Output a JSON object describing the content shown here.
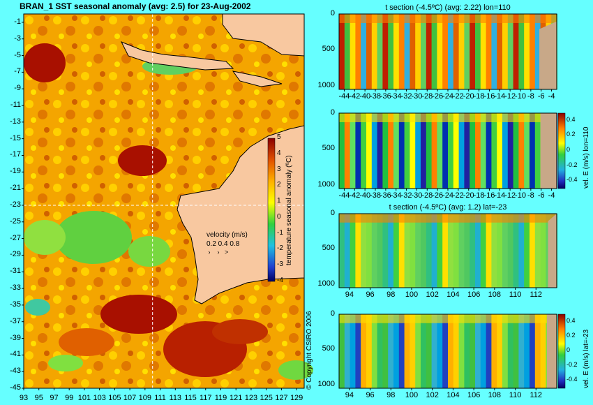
{
  "map": {
    "title": "BRAN_1  SST seasonal anomaly  (avg: 2.5) for 23-Aug-2002",
    "x_ticks": [
      "93",
      "95",
      "97",
      "99",
      "101",
      "103",
      "105",
      "107",
      "109",
      "111",
      "113",
      "115",
      "117",
      "119",
      "121",
      "123",
      "125",
      "127",
      "129"
    ],
    "y_ticks": [
      "-1",
      "-3",
      "-5",
      "-7",
      "-9",
      "-11",
      "-13",
      "-15",
      "-17",
      "-19",
      "-21",
      "-23",
      "-25",
      "-27",
      "-29",
      "-31",
      "-33",
      "-35",
      "-37",
      "-39",
      "-41",
      "-43",
      "-45"
    ],
    "colorbar": {
      "label": "temperature seasonal anomaly (ºC)",
      "ticks": [
        "5",
        "4",
        "3",
        "2",
        "1",
        "0",
        "-1",
        "-2",
        "-3",
        "-4"
      ]
    },
    "velocity": {
      "title": "velocity (m/s)",
      "values": "0.2 0.4 0.8"
    },
    "section_lon": 110,
    "section_lat": -23
  },
  "copyright": "© Copyright CSIRO 2006",
  "panels": [
    {
      "title": "t section (-4.5ºC) (avg: 2.22) lon=110",
      "y_ticks": [
        "0",
        "500",
        "1000"
      ],
      "x_ticks": [
        "-44",
        "-42",
        "-40",
        "-38",
        "-36",
        "-34",
        "-32",
        "-30",
        "-28",
        "-26",
        "-24",
        "-22",
        "-20",
        "-18",
        "-16",
        "-14",
        "-12",
        "-10",
        "-8",
        "-6",
        "-4"
      ]
    },
    {
      "title": "",
      "y_ticks": [
        "0",
        "500",
        "1000"
      ],
      "x_ticks": [
        "-44",
        "-42",
        "-40",
        "-38",
        "-36",
        "-34",
        "-32",
        "-30",
        "-28",
        "-26",
        "-24",
        "-22",
        "-20",
        "-18",
        "-16",
        "-14",
        "-12",
        "-10",
        "-8",
        "-6",
        "-4"
      ],
      "colorbar_label": "vel. E (m/s) lon=110",
      "colorbar_ticks": [
        "0.4",
        "0.2",
        "0",
        "-0.2",
        "-0.4"
      ]
    },
    {
      "title": "t section (-4.5ºC) (avg: 1.2) lat=-23",
      "y_ticks": [
        "0",
        "500",
        "1000"
      ],
      "x_ticks": [
        "94",
        "96",
        "98",
        "100",
        "102",
        "104",
        "106",
        "108",
        "110",
        "112"
      ]
    },
    {
      "title": "",
      "y_ticks": [
        "0",
        "500",
        "1000"
      ],
      "x_ticks": [
        "94",
        "96",
        "98",
        "100",
        "102",
        "104",
        "106",
        "108",
        "110",
        "112"
      ],
      "colorbar_label": "vel. E (m/s) lat=-23",
      "colorbar_ticks": [
        "0.4",
        "0.2",
        "0",
        "-0.2",
        "-0.4"
      ]
    }
  ],
  "chart_data": [
    {
      "type": "heatmap",
      "title": "BRAN_1  SST seasonal anomaly  (avg: 2.5) for 23-Aug-2002",
      "xlim": [
        93,
        130
      ],
      "ylim": [
        -45,
        0
      ],
      "colorbar_range": [
        -4,
        5
      ],
      "avg": 2.5
    },
    {
      "type": "heatmap",
      "title": "t section (-4.5ºC) (avg: 2.22) lon=110",
      "xlim": [
        -45,
        -3
      ],
      "ylim": [
        1050,
        0
      ],
      "avg": 2.22
    },
    {
      "type": "heatmap",
      "title": "",
      "xlim": [
        -45,
        -3
      ],
      "ylim": [
        1050,
        0
      ],
      "colorbar_range": [
        -0.5,
        0.5
      ]
    },
    {
      "type": "heatmap",
      "title": "t section (-4.5ºC) (avg: 1.2) lat=-23",
      "xlim": [
        93,
        114
      ],
      "ylim": [
        1050,
        0
      ],
      "avg": 1.2
    },
    {
      "type": "heatmap",
      "title": "",
      "xlim": [
        93,
        114
      ],
      "ylim": [
        1050,
        0
      ],
      "colorbar_range": [
        -0.5,
        0.5
      ]
    }
  ]
}
